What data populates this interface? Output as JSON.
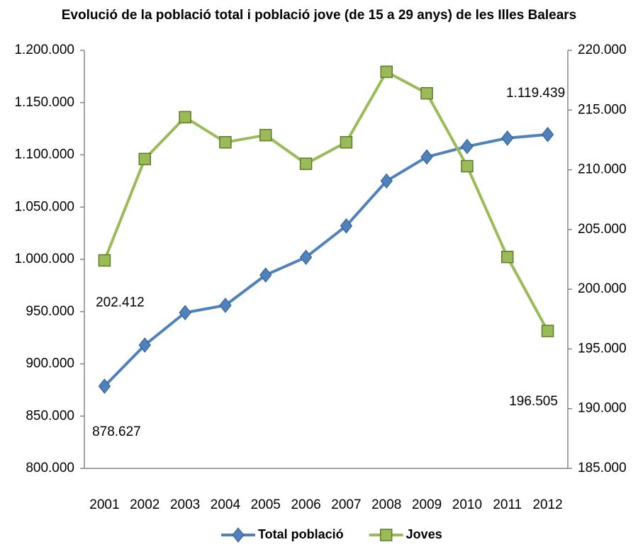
{
  "chart_data": {
    "type": "line",
    "title": "Evolució de la població total i població jove (de 15 a 29 anys) de les Illes Balears",
    "categories": [
      "2001",
      "2002",
      "2003",
      "2004",
      "2005",
      "2006",
      "2007",
      "2008",
      "2009",
      "2010",
      "2011",
      "2012"
    ],
    "series": [
      {
        "name": "Total població",
        "color": "#4f81bd",
        "marker": "diamond",
        "values": [
          878627,
          918000,
          949000,
          956000,
          985000,
          1002000,
          1032000,
          1075000,
          1098000,
          1108000,
          1116000,
          1119439
        ],
        "value_labels": [
          "878.627",
          null,
          null,
          null,
          null,
          null,
          null,
          null,
          null,
          null,
          null,
          "1.119.439"
        ]
      },
      {
        "name": "Joves",
        "color": "#9bbb59",
        "marker": "square",
        "axis": "y2",
        "values": [
          202412,
          210900,
          214400,
          212300,
          212900,
          210500,
          212300,
          218200,
          216400,
          210300,
          202700,
          196505
        ],
        "value_labels": [
          "202.412",
          null,
          null,
          null,
          null,
          null,
          null,
          null,
          null,
          null,
          null,
          "196.505"
        ]
      }
    ],
    "ylim": [
      800000,
      1200000
    ],
    "yticks": [
      {
        "value": 800000,
        "label": "800.000"
      },
      {
        "value": 850000,
        "label": "850.000"
      },
      {
        "value": 900000,
        "label": "900.000"
      },
      {
        "value": 950000,
        "label": "950.000"
      },
      {
        "value": 1000000,
        "label": "1.000.000"
      },
      {
        "value": 1050000,
        "label": "1.050.000"
      },
      {
        "value": 1100000,
        "label": "1.100.000"
      },
      {
        "value": 1150000,
        "label": "1.150.000"
      },
      {
        "value": 1200000,
        "label": "1.200.000"
      }
    ],
    "y2lim": [
      185000,
      220000
    ],
    "y2ticks": [
      {
        "value": 185000,
        "label": "185.000"
      },
      {
        "value": 190000,
        "label": "190.000"
      },
      {
        "value": 195000,
        "label": "195.000"
      },
      {
        "value": 200000,
        "label": "200.000"
      },
      {
        "value": 205000,
        "label": "205.000"
      },
      {
        "value": 210000,
        "label": "210.000"
      },
      {
        "value": 215000,
        "label": "215.000"
      },
      {
        "value": 220000,
        "label": "220.000"
      }
    ],
    "grid": false,
    "legend": "bottom"
  }
}
